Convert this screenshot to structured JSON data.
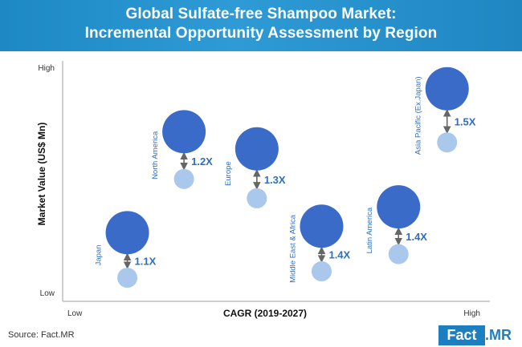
{
  "header": {
    "title_line1": "Global Sulfate-free Shampoo Market:",
    "title_line2": "Incremental Opportunity Assessment by Region"
  },
  "footer": {
    "source": "Source: Fact.MR",
    "logo_fact": "Fact",
    "logo_mr": ".MR"
  },
  "colors": {
    "banner": "#2390cd",
    "big_bubble": "#3b6bc8",
    "small_bubble": "#a9c8ec",
    "label": "#2e6fbd",
    "arrow": "#666666"
  },
  "chart_data": {
    "type": "scatter",
    "xlabel": "CAGR (2019-2027)",
    "ylabel": "Market Value (US$ Mn)",
    "x_tick_low": "Low",
    "x_tick_high": "High",
    "y_tick_low": "Low",
    "y_tick_high": "High",
    "regions": [
      {
        "name": "Japan",
        "multiplier": "1.1X",
        "cagr": 0.14,
        "value_current": 0.05,
        "value_future": 0.26
      },
      {
        "name": "North America",
        "multiplier": "1.2X",
        "cagr": 0.28,
        "value_current": 0.51,
        "value_future": 0.73
      },
      {
        "name": "Europe",
        "multiplier": "1.3X",
        "cagr": 0.46,
        "value_current": 0.42,
        "value_future": 0.65
      },
      {
        "name": "Middle East & Africa",
        "multiplier": "1.4X",
        "cagr": 0.62,
        "value_current": 0.08,
        "value_future": 0.29
      },
      {
        "name": "Latin America",
        "multiplier": "1.4X",
        "cagr": 0.81,
        "value_current": 0.16,
        "value_future": 0.38
      },
      {
        "name": "Asia Pacific (Ex.Japan)",
        "multiplier": "1.5X",
        "cagr": 0.93,
        "value_current": 0.68,
        "value_future": 0.93
      }
    ]
  }
}
